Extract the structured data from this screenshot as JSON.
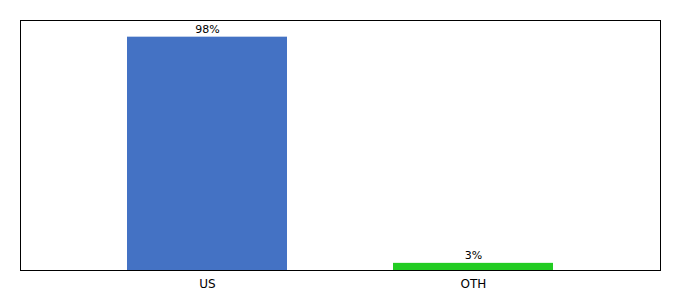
{
  "chart_data": {
    "type": "bar",
    "categories": [
      "US",
      "OTH"
    ],
    "values": [
      98,
      3
    ],
    "colors": [
      "#4472c4",
      "#22cc22"
    ],
    "value_labels": [
      "98%",
      "3%"
    ],
    "data_labels": true,
    "ylim": [
      0,
      105
    ],
    "yticks": [],
    "tick_labels": "x",
    "grid": false
  }
}
